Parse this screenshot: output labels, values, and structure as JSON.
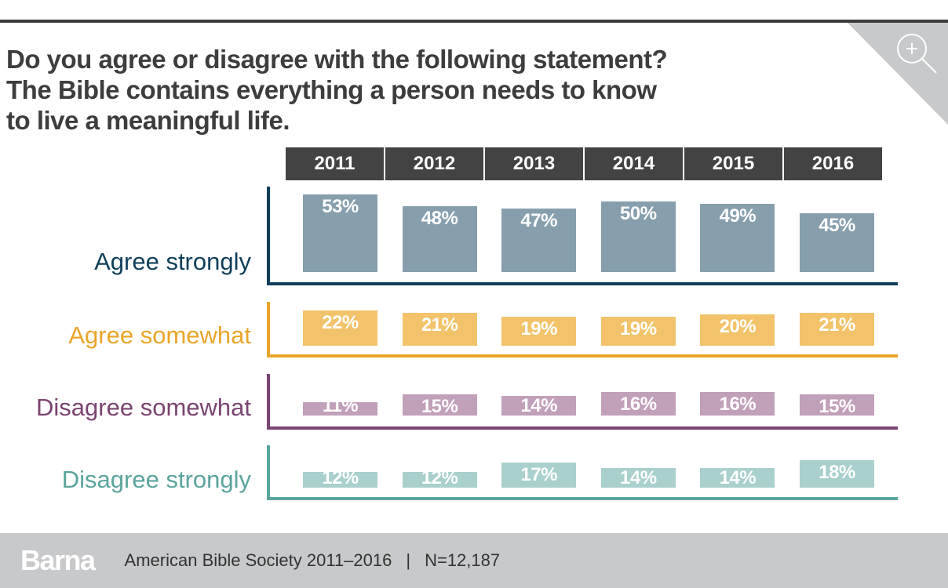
{
  "title_lines": [
    "Do you agree or disagree with the following statement?",
    "The Bible contains everything a person needs to know",
    "to live a meaningful life."
  ],
  "zoom_icon": "zoom-in-icon",
  "chart_data": {
    "type": "bar",
    "title": "Do you agree or disagree with the following statement? The Bible contains everything a person needs to know to live a meaningful life.",
    "categories": [
      "2011",
      "2012",
      "2013",
      "2014",
      "2015",
      "2016"
    ],
    "series": [
      {
        "name": "Agree strongly",
        "color": "#0f3f5a",
        "bar_color": "#879fad",
        "values": [
          53,
          48,
          47,
          50,
          49,
          45
        ]
      },
      {
        "name": "Agree somewhat",
        "color": "#eaa52a",
        "bar_color": "#f2c36a",
        "values": [
          22,
          21,
          19,
          19,
          20,
          21
        ]
      },
      {
        "name": "Disagree somewhat",
        "color": "#7a4470",
        "bar_color": "#c1a0b9",
        "values": [
          11,
          15,
          14,
          16,
          16,
          15
        ]
      },
      {
        "name": "Disagree strongly",
        "color": "#5aa59c",
        "bar_color": "#a9d0cc",
        "values": [
          12,
          12,
          17,
          14,
          14,
          18
        ]
      }
    ],
    "value_suffix": "%",
    "xlabel": "",
    "ylabel": "",
    "ylim": [
      0,
      100
    ],
    "grid": false,
    "legend": "left"
  },
  "footer": {
    "brand": "Barna",
    "source": "American Bible Society 2011–2016",
    "separator": "|",
    "sample": "N=12,187"
  }
}
